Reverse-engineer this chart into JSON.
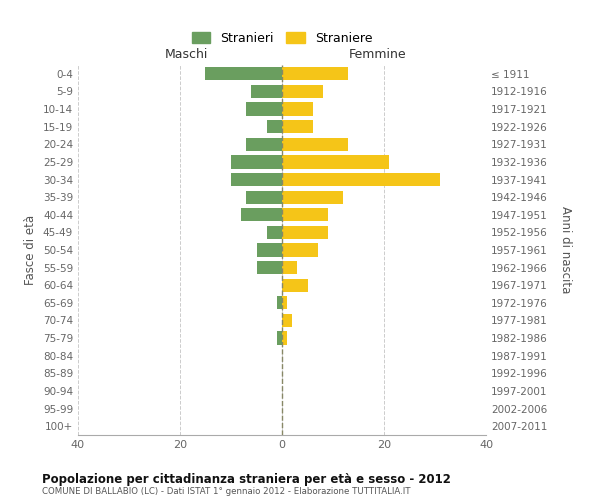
{
  "age_groups": [
    "0-4",
    "5-9",
    "10-14",
    "15-19",
    "20-24",
    "25-29",
    "30-34",
    "35-39",
    "40-44",
    "45-49",
    "50-54",
    "55-59",
    "60-64",
    "65-69",
    "70-74",
    "75-79",
    "80-84",
    "85-89",
    "90-94",
    "95-99",
    "100+"
  ],
  "birth_years": [
    "2007-2011",
    "2002-2006",
    "1997-2001",
    "1992-1996",
    "1987-1991",
    "1982-1986",
    "1977-1981",
    "1972-1976",
    "1967-1971",
    "1962-1966",
    "1957-1961",
    "1952-1956",
    "1947-1951",
    "1942-1946",
    "1937-1941",
    "1932-1936",
    "1927-1931",
    "1922-1926",
    "1917-1921",
    "1912-1916",
    "≤ 1911"
  ],
  "maschi": [
    15,
    6,
    7,
    3,
    7,
    10,
    10,
    7,
    8,
    3,
    5,
    5,
    0,
    1,
    0,
    1,
    0,
    0,
    0,
    0,
    0
  ],
  "femmine": [
    13,
    8,
    6,
    6,
    13,
    21,
    31,
    12,
    9,
    9,
    7,
    3,
    5,
    1,
    2,
    1,
    0,
    0,
    0,
    0,
    0
  ],
  "maschi_color": "#6a9e5f",
  "femmine_color": "#f5c518",
  "title": "Popolazione per cittadinanza straniera per età e sesso - 2012",
  "subtitle": "COMUNE DI BALLABIO (LC) - Dati ISTAT 1° gennaio 2012 - Elaborazione TUTTITALIA.IT",
  "ylabel_left": "Fasce di età",
  "ylabel_right": "Anni di nascita",
  "xlabel_maschi": "Maschi",
  "xlabel_femmine": "Femmine",
  "legend_stranieri": "Stranieri",
  "legend_straniere": "Straniere",
  "xlim": 40,
  "background_color": "#ffffff",
  "grid_color": "#cccccc"
}
